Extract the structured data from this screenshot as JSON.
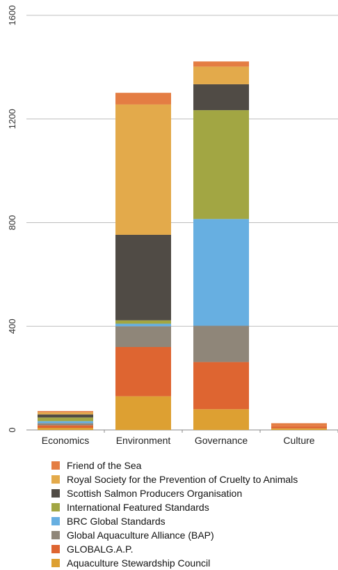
{
  "chart_data": {
    "type": "bar",
    "stacked": true,
    "categories": [
      "Economics",
      "Environment",
      "Governance",
      "Culture"
    ],
    "ylim": [
      0,
      1600
    ],
    "yticks": [
      0,
      400,
      800,
      1200,
      1600
    ],
    "grid": true,
    "legend_position": "bottom",
    "series": [
      {
        "name": "Aquaculture Stewardship Council",
        "color": "#DDA032",
        "values": [
          8,
          130,
          80,
          6
        ]
      },
      {
        "name": "GLOBALG.A.P.",
        "color": "#DE6531",
        "values": [
          10,
          190,
          182,
          8
        ]
      },
      {
        "name": "Global Aquaculture Alliance (BAP)",
        "color": "#8F8679",
        "values": [
          8,
          80,
          140,
          0
        ]
      },
      {
        "name": "BRC Global Standards",
        "color": "#67AFE1",
        "values": [
          8,
          10,
          412,
          0
        ]
      },
      {
        "name": "International Featured Standards",
        "color": "#A2A643",
        "values": [
          14,
          13,
          420,
          0
        ]
      },
      {
        "name": "Scottish Salmon Producers Organisation",
        "color": "#504B45",
        "values": [
          12,
          330,
          100,
          0
        ]
      },
      {
        "name": "Royal Society for the Prevention of Cruelty to  Animals",
        "color": "#E3AA4B",
        "values": [
          8,
          503,
          68,
          0
        ]
      },
      {
        "name": "Friend of the Sea",
        "color": "#E47D43",
        "values": [
          5,
          45,
          20,
          12
        ]
      }
    ]
  }
}
